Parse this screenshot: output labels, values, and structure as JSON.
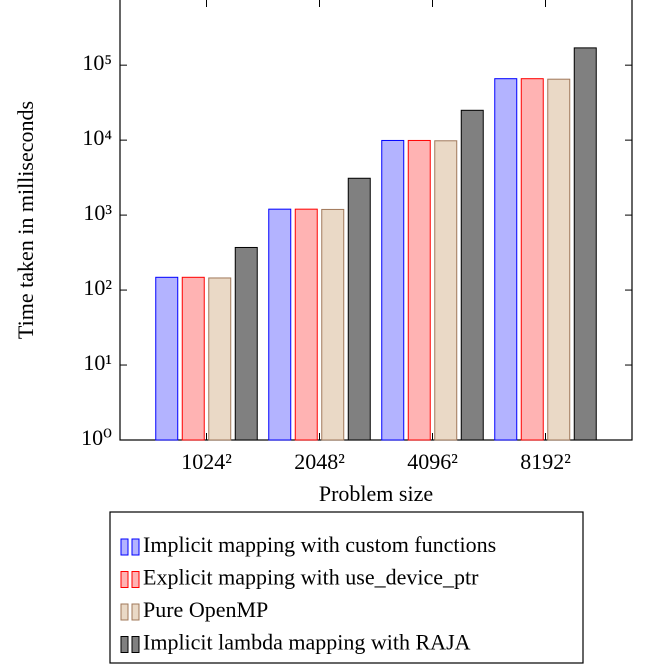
{
  "chart_data": {
    "type": "bar",
    "y_label": "Time taken in milliseconds",
    "x_label": "Problem size",
    "categories": [
      "1024²",
      "2048²",
      "4096²",
      "8192²"
    ],
    "log_y": true,
    "ylim": [
      1,
      740000
    ],
    "yticks": [
      {
        "value": 1,
        "label": "10⁰"
      },
      {
        "value": 10,
        "label": "10¹"
      },
      {
        "value": 100,
        "label": "10²"
      },
      {
        "value": 1000,
        "label": "10³"
      },
      {
        "value": 10000,
        "label": "10⁴"
      },
      {
        "value": 100000,
        "label": "10⁵"
      }
    ],
    "series": [
      {
        "name": "Implicit mapping with custom functions",
        "color": "#b3b3ff",
        "edge": "#0000ff",
        "values": [
          148,
          1200,
          9900,
          66000
        ]
      },
      {
        "name": "Explicit mapping with use_device_ptr",
        "color": "#ffb3b3",
        "edge": "#ff0000",
        "values": [
          148,
          1200,
          9900,
          66000
        ]
      },
      {
        "name": "Pure OpenMP",
        "color": "#ead9c6",
        "edge": "#a0785a",
        "values": [
          145,
          1190,
          9800,
          65000
        ]
      },
      {
        "name": "Implicit lambda mapping with RAJA",
        "color": "#808080",
        "edge": "#000000",
        "values": [
          370,
          3100,
          25000,
          170000
        ]
      }
    ]
  }
}
